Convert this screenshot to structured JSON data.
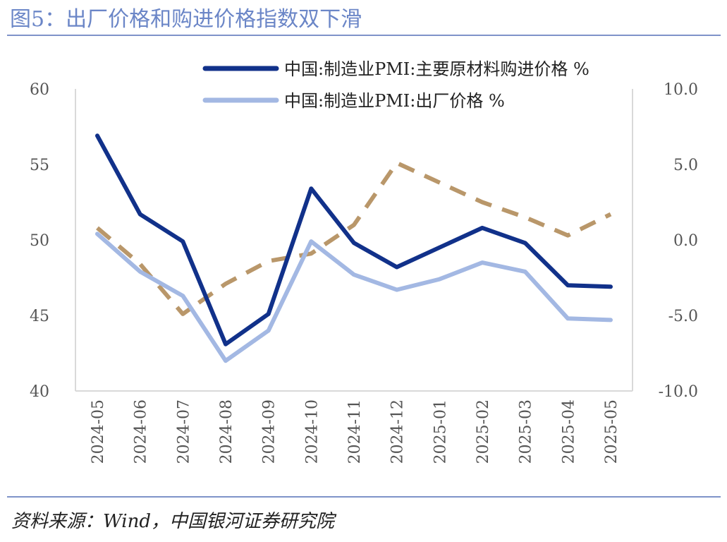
{
  "figure": {
    "title": "图5：出厂价格和购进价格指数双下滑",
    "source": "资料来源：Wind，中国银河证券研究院"
  },
  "chart_data": {
    "type": "line",
    "x": [
      "2024-05",
      "2024-06",
      "2024-07",
      "2024-08",
      "2024-09",
      "2024-10",
      "2024-11",
      "2024-12",
      "2025-01",
      "2025-02",
      "2025-03",
      "2025-04",
      "2025-05"
    ],
    "y_left": {
      "min": 40,
      "max": 60,
      "ticks": [
        40,
        45,
        50,
        55,
        60
      ]
    },
    "y_right": {
      "min": -10,
      "max": 10,
      "ticks": [
        "-10.0",
        "-5.0",
        "0.0",
        "5.0",
        "10.0"
      ]
    },
    "series": [
      {
        "name": "中国:制造业PMI:主要原材料购进价格 %",
        "axis": "left",
        "color": "#11318a",
        "dash": "none",
        "in_legend": true,
        "values": [
          56.9,
          51.7,
          49.9,
          43.1,
          45.1,
          53.4,
          49.8,
          48.2,
          49.5,
          50.8,
          49.8,
          47.0,
          46.9
        ]
      },
      {
        "name": "中国:制造业PMI:出厂价格 %",
        "axis": "left",
        "color": "#a3b8e3",
        "dash": "none",
        "in_legend": true,
        "values": [
          50.4,
          47.9,
          46.3,
          42.0,
          44.0,
          49.9,
          47.7,
          46.7,
          47.4,
          48.5,
          47.9,
          44.8,
          44.7
        ]
      },
      {
        "name": "",
        "axis": "right",
        "color": "#b9976a",
        "dash": "dashed",
        "in_legend": false,
        "values": [
          0.8,
          -1.6,
          -4.9,
          -2.9,
          -1.4,
          -0.9,
          1.0,
          5.1,
          3.8,
          2.5,
          1.5,
          0.3,
          1.7
        ]
      }
    ],
    "legend_position": "top-right",
    "grid": false
  }
}
